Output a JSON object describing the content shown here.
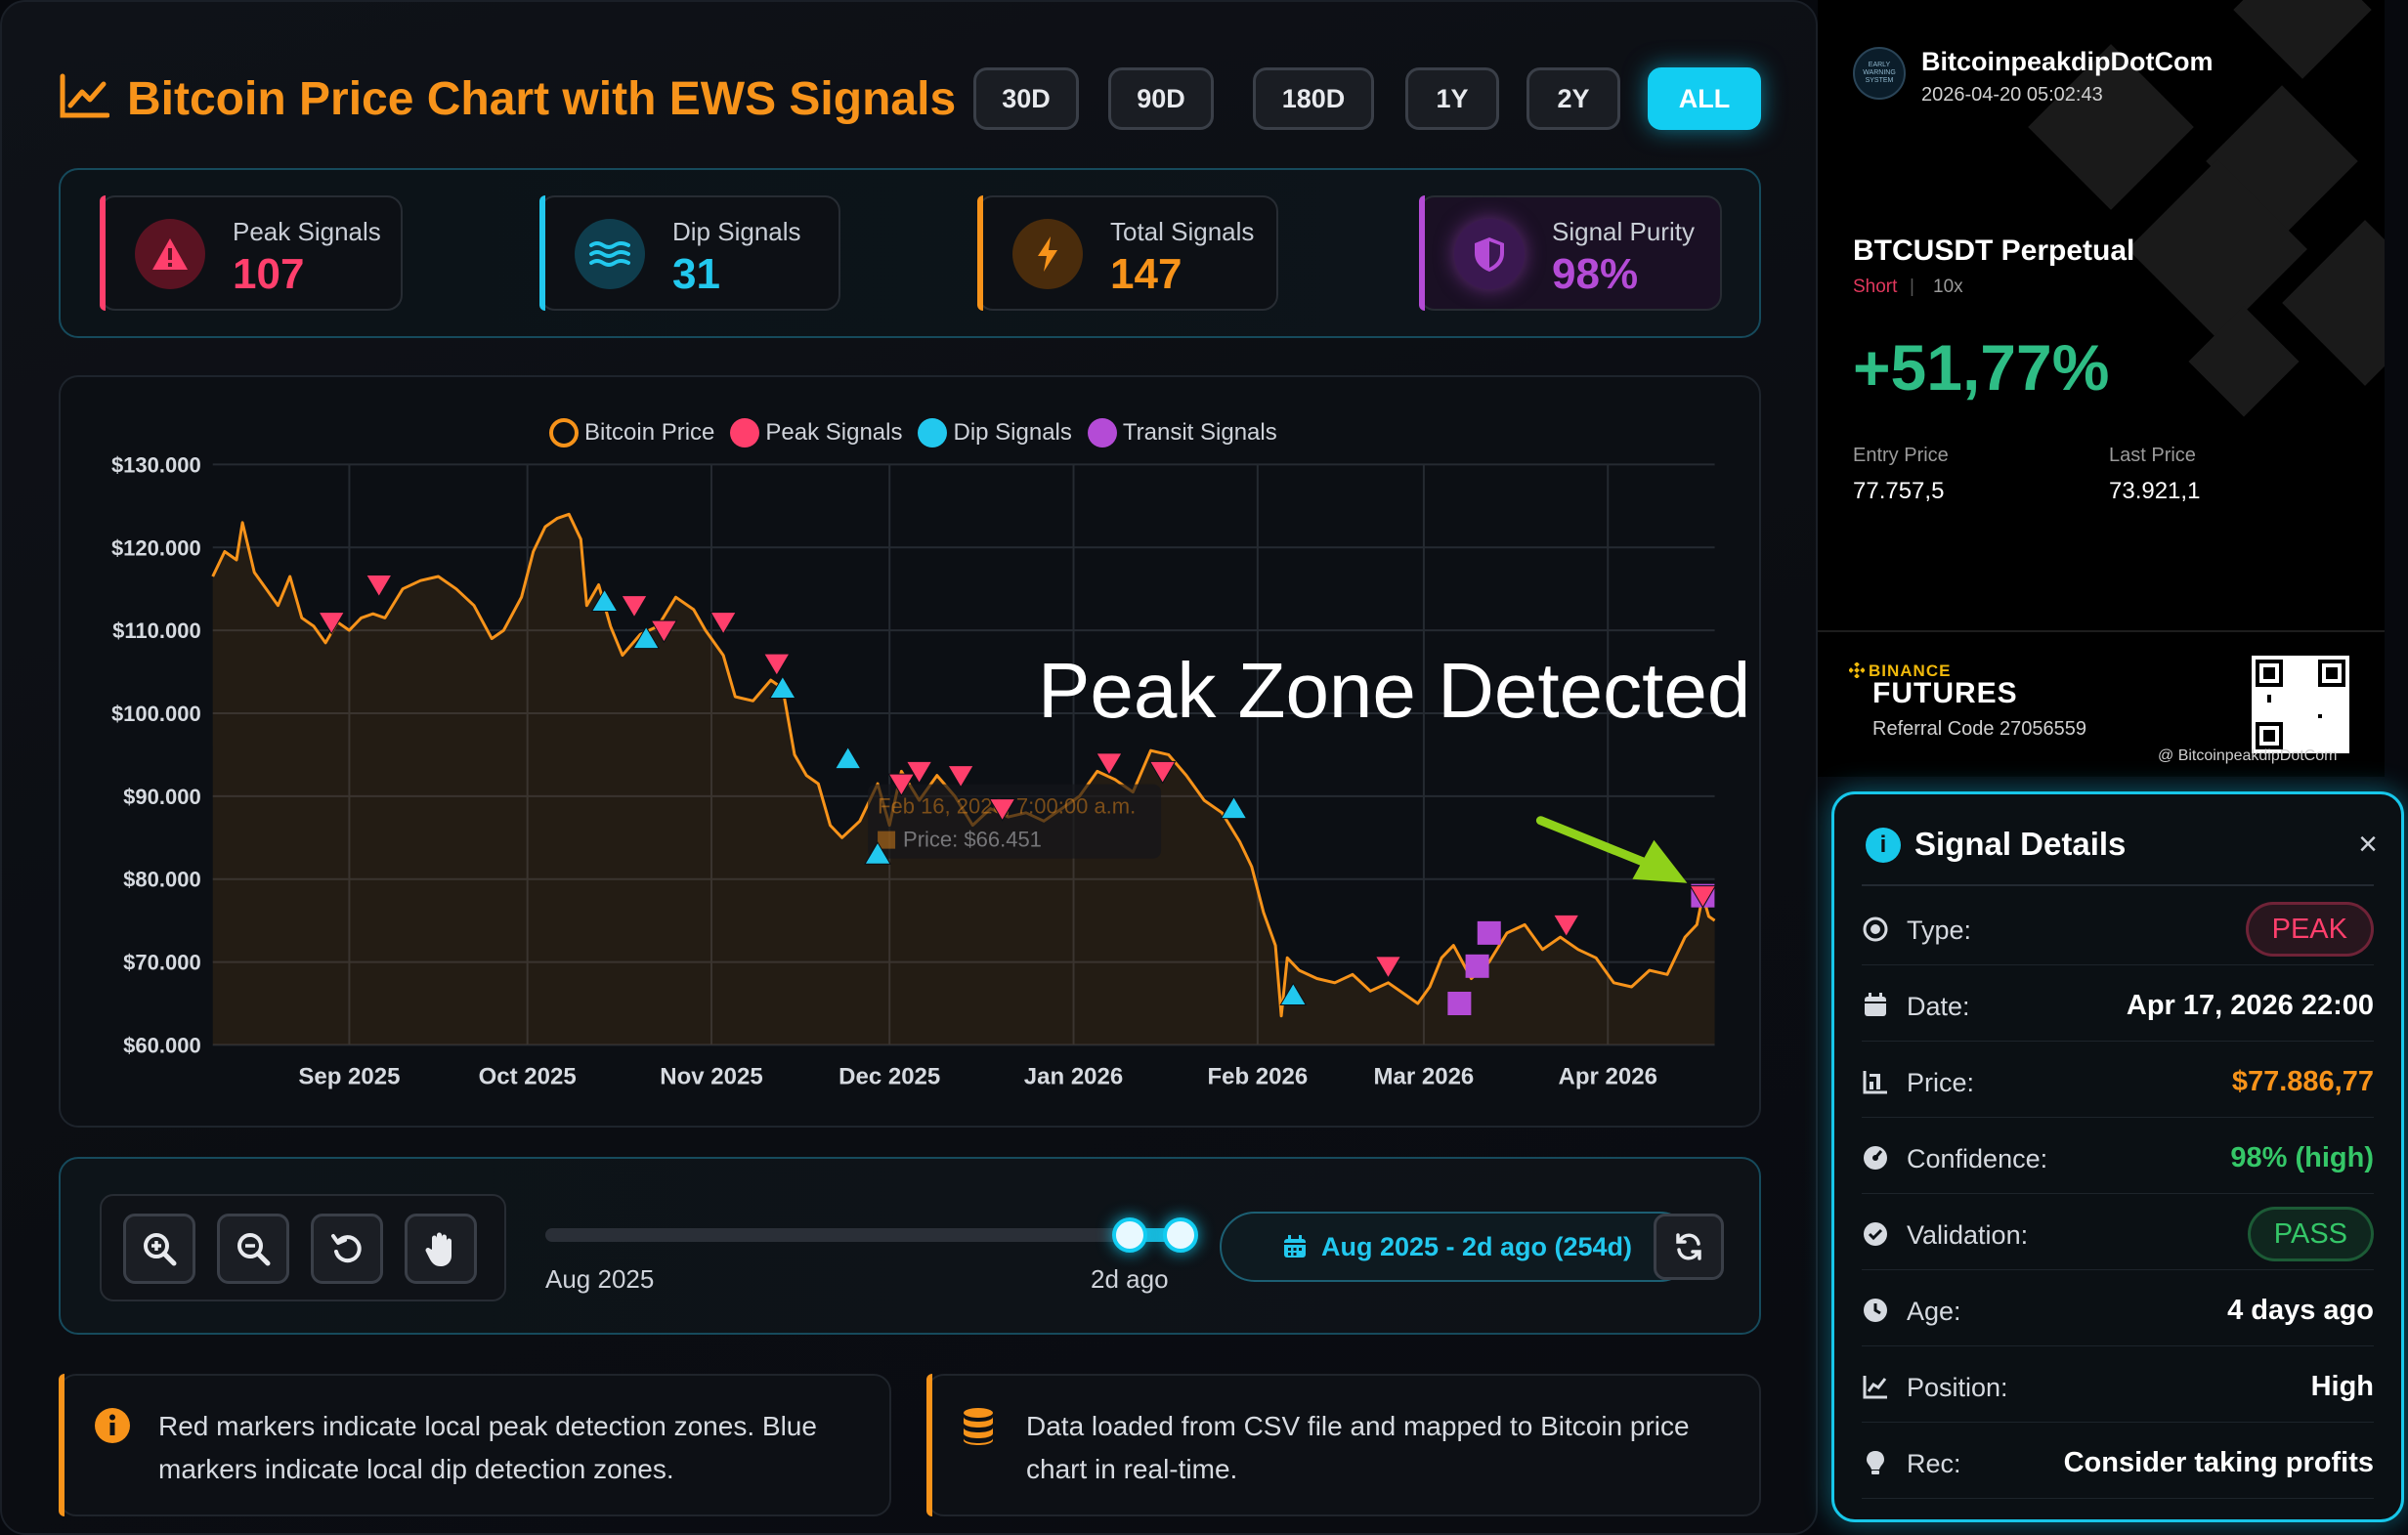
{
  "header": {
    "title": "Bitcoin Price Chart with EWS Signals",
    "ranges": [
      "30D",
      "90D",
      "180D",
      "1Y",
      "2Y",
      "ALL"
    ],
    "active_range": "ALL"
  },
  "stats": [
    {
      "label": "Peak Signals",
      "value": "107",
      "color": "#ff3f6c",
      "icon": "warning-triangle-icon"
    },
    {
      "label": "Dip Signals",
      "value": "31",
      "color": "#22c8ee",
      "icon": "waves-icon"
    },
    {
      "label": "Total Signals",
      "value": "147",
      "color": "#f7931a",
      "icon": "lightning-icon"
    },
    {
      "label": "Signal Purity",
      "value": "98%",
      "color": "#b44bd6",
      "icon": "shield-icon"
    }
  ],
  "chart_data": {
    "type": "line",
    "legend": [
      "Bitcoin Price",
      "Peak Signals",
      "Dip Signals",
      "Transit Signals"
    ],
    "x_ticks": [
      "Sep 2025",
      "Oct 2025",
      "Nov 2025",
      "Dec 2025",
      "Jan 2026",
      "Feb 2026",
      "Mar 2026",
      "Apr 2026"
    ],
    "y_ticks": [
      "$130.000",
      "$120.000",
      "$110.000",
      "$100.000",
      "$90.000",
      "$80.000",
      "$70.000",
      "$60.000"
    ],
    "ylim": [
      60000,
      130000
    ],
    "x_range": [
      "2025-08-09",
      "2026-04-19"
    ],
    "series": [
      {
        "name": "Bitcoin Price",
        "color": "#f7931a",
        "x": [
          "2025-08-09",
          "2025-08-11",
          "2025-08-13",
          "2025-08-14",
          "2025-08-16",
          "2025-08-18",
          "2025-08-20",
          "2025-08-22",
          "2025-08-24",
          "2025-08-26",
          "2025-08-28",
          "2025-08-30",
          "2025-09-01",
          "2025-09-03",
          "2025-09-05",
          "2025-09-07",
          "2025-09-10",
          "2025-09-13",
          "2025-09-16",
          "2025-09-19",
          "2025-09-22",
          "2025-09-25",
          "2025-09-27",
          "2025-09-30",
          "2025-10-02",
          "2025-10-04",
          "2025-10-06",
          "2025-10-08",
          "2025-10-10",
          "2025-10-11",
          "2025-10-13",
          "2025-10-15",
          "2025-10-17",
          "2025-10-20",
          "2025-10-23",
          "2025-10-26",
          "2025-10-29",
          "2025-10-31",
          "2025-11-03",
          "2025-11-05",
          "2025-11-08",
          "2025-11-11",
          "2025-11-13",
          "2025-11-15",
          "2025-11-17",
          "2025-11-19",
          "2025-11-21",
          "2025-11-23",
          "2025-11-26",
          "2025-11-29",
          "2025-12-01",
          "2025-12-03",
          "2025-12-06",
          "2025-12-09",
          "2025-12-12",
          "2025-12-15",
          "2025-12-18",
          "2025-12-21",
          "2025-12-24",
          "2025-12-27",
          "2025-12-30",
          "2026-01-02",
          "2026-01-05",
          "2026-01-08",
          "2026-01-11",
          "2026-01-14",
          "2026-01-17",
          "2026-01-20",
          "2026-01-23",
          "2026-01-26",
          "2026-01-29",
          "2026-01-31",
          "2026-02-02",
          "2026-02-04",
          "2026-02-05",
          "2026-02-06",
          "2026-02-08",
          "2026-02-11",
          "2026-02-14",
          "2026-02-17",
          "2026-02-20",
          "2026-02-23",
          "2026-02-26",
          "2026-02-28",
          "2026-03-02",
          "2026-03-04",
          "2026-03-06",
          "2026-03-09",
          "2026-03-12",
          "2026-03-15",
          "2026-03-18",
          "2026-03-21",
          "2026-03-24",
          "2026-03-27",
          "2026-03-30",
          "2026-04-02",
          "2026-04-05",
          "2026-04-08",
          "2026-04-11",
          "2026-04-14",
          "2026-04-16",
          "2026-04-17",
          "2026-04-18",
          "2026-04-19"
        ],
        "y": [
          116500,
          119500,
          118500,
          123000,
          117000,
          115000,
          113000,
          116500,
          111500,
          110500,
          108500,
          111000,
          110000,
          111500,
          112000,
          111500,
          115000,
          116000,
          116500,
          115000,
          113000,
          109000,
          110000,
          114000,
          119500,
          122500,
          123500,
          124000,
          121000,
          113000,
          115500,
          110500,
          107000,
          109500,
          110500,
          114000,
          112500,
          110000,
          107000,
          102000,
          101500,
          104000,
          103000,
          95000,
          92500,
          91500,
          86500,
          85000,
          87000,
          91500,
          86500,
          93000,
          89500,
          92500,
          90000,
          86500,
          88500,
          87500,
          88000,
          87000,
          88500,
          90000,
          93000,
          92000,
          90500,
          95500,
          95000,
          92500,
          89500,
          88000,
          84500,
          81500,
          76000,
          72000,
          63500,
          70500,
          69000,
          68000,
          67500,
          68500,
          66500,
          67500,
          66000,
          65000,
          67000,
          70500,
          72000,
          68000,
          70000,
          73500,
          74500,
          71500,
          73000,
          71500,
          70500,
          67500,
          67000,
          69000,
          68500,
          73000,
          74500,
          78000,
          75500,
          75000
        ]
      }
    ],
    "peak_markers": [
      {
        "x": "2025-08-29",
        "y": 111000
      },
      {
        "x": "2025-09-06",
        "y": 115500
      },
      {
        "x": "2025-10-19",
        "y": 113000
      },
      {
        "x": "2025-10-24",
        "y": 110000
      },
      {
        "x": "2025-11-03",
        "y": 111000
      },
      {
        "x": "2025-11-12",
        "y": 106000
      },
      {
        "x": "2025-12-03",
        "y": 91500
      },
      {
        "x": "2025-12-06",
        "y": 93000
      },
      {
        "x": "2025-12-13",
        "y": 92500
      },
      {
        "x": "2025-12-20",
        "y": 88500
      },
      {
        "x": "2026-01-07",
        "y": 94000
      },
      {
        "x": "2026-01-16",
        "y": 93000
      },
      {
        "x": "2026-02-23",
        "y": 69500
      },
      {
        "x": "2026-03-25",
        "y": 74500
      },
      {
        "x": "2026-04-17",
        "y": 78000
      }
    ],
    "dip_markers": [
      {
        "x": "2025-10-14",
        "y": 113500
      },
      {
        "x": "2025-10-21",
        "y": 109000
      },
      {
        "x": "2025-11-13",
        "y": 103000
      },
      {
        "x": "2025-11-24",
        "y": 94500
      },
      {
        "x": "2025-11-29",
        "y": 83000
      },
      {
        "x": "2026-01-28",
        "y": 88500
      },
      {
        "x": "2026-02-07",
        "y": 66000
      }
    ],
    "transit_markers": [
      {
        "x": "2026-03-07",
        "y": 65000
      },
      {
        "x": "2026-03-10",
        "y": 69500
      },
      {
        "x": "2026-03-12",
        "y": 73500
      },
      {
        "x": "2026-04-17",
        "y": 78000
      }
    ],
    "tooltip": {
      "title": "Feb 16, 2026, 7:00:00 a.m.",
      "body": "Price: $66.451"
    },
    "annotation": "Peak Zone Detected"
  },
  "navigator": {
    "start_label": "Aug 2025",
    "end_label": "2d ago",
    "window_start": 0.91,
    "window_end": 1.0,
    "range_text": "Aug 2025 - 2d ago (254d)"
  },
  "info": [
    {
      "text": "Red markers indicate local peak detection zones. Blue markers indicate local dip detection zones."
    },
    {
      "text": "Data loaded from CSV file and mapped to Bitcoin price chart in real-time."
    }
  ],
  "binance": {
    "name": "BitcoinpeakdipDotCom",
    "timestamp": "2026-04-20 05:02:43",
    "avatar_text": "EARLY WARNING SYSTEM",
    "pair": "BTCUSDT Perpetual",
    "side": "Short",
    "leverage": "10x",
    "pnl": "+51,77%",
    "entry_label": "Entry Price",
    "entry_value": "77.757,5",
    "last_label": "Last Price",
    "last_value": "73.921,1",
    "brand": "BINANCE",
    "product": "FUTURES",
    "referral": "Referral Code 27056559",
    "handle": "@ BitcoinpeakdipDotCom"
  },
  "details": {
    "title": "Signal Details",
    "rows": [
      {
        "label": "Type:",
        "value": "PEAK",
        "kind": "badge",
        "color": "#ff3f6c"
      },
      {
        "label": "Date:",
        "value": "Apr 17, 2026 22:00",
        "kind": "text",
        "color": "#ffffff"
      },
      {
        "label": "Price:",
        "value": "$77.886,77",
        "kind": "text",
        "color": "#f7931a"
      },
      {
        "label": "Confidence:",
        "value": "98% (high)",
        "kind": "text",
        "color": "#35c768"
      },
      {
        "label": "Validation:",
        "value": "PASS",
        "kind": "badge",
        "color": "#35c768"
      },
      {
        "label": "Age:",
        "value": "4 days ago",
        "kind": "text",
        "color": "#ffffff"
      },
      {
        "label": "Position:",
        "value": "High",
        "kind": "text",
        "color": "#ffffff"
      },
      {
        "label": "Rec:",
        "value": "Consider taking profits",
        "kind": "text",
        "color": "#ffffff"
      }
    ],
    "row_icons": [
      "target-icon",
      "calendar-icon",
      "chart-icon",
      "gauge-icon",
      "check-circle-icon",
      "clock-icon",
      "line-chart-icon",
      "lightbulb-icon"
    ]
  }
}
